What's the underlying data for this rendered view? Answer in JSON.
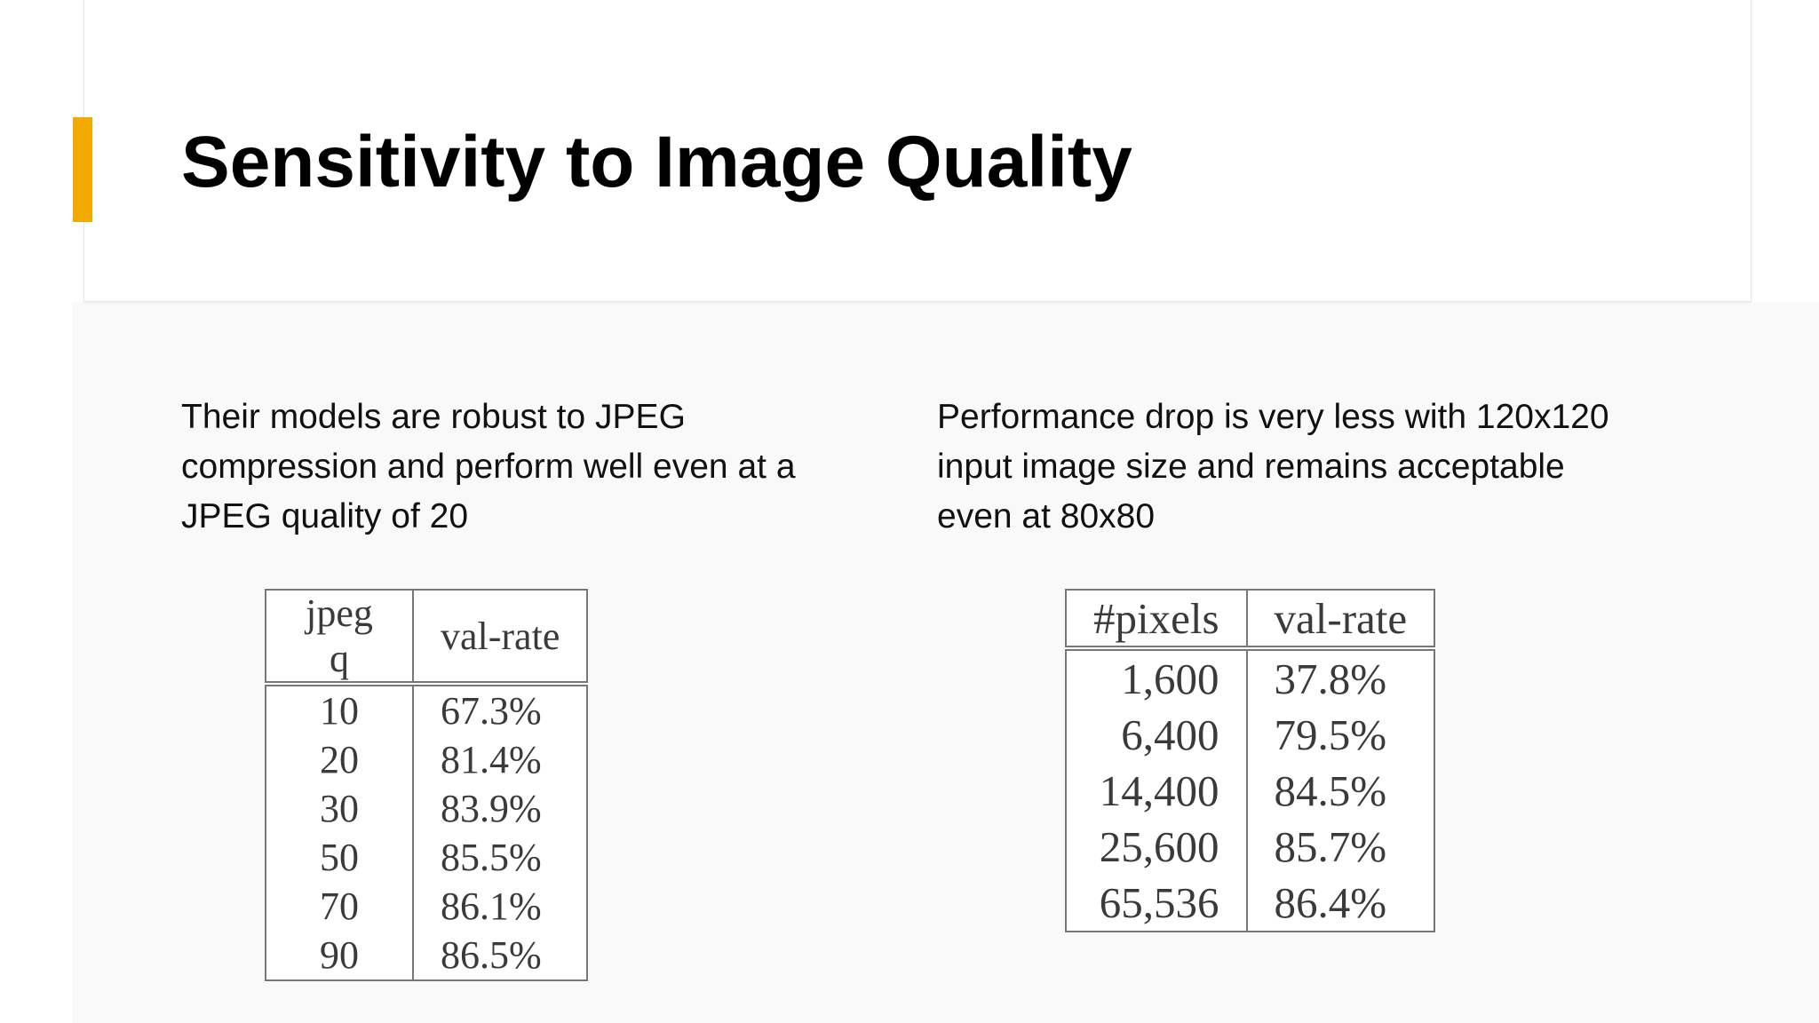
{
  "header": {
    "title": "Sensitivity to Image Quality"
  },
  "columns": [
    {
      "text": "Their models are robust to JPEG compression and perform well even at a JPEG quality of 20",
      "table": {
        "headers": [
          "jpeg q",
          "val-rate"
        ],
        "rows": [
          [
            "10",
            "67.3%"
          ],
          [
            "20",
            "81.4%"
          ],
          [
            "30",
            "83.9%"
          ],
          [
            "50",
            "85.5%"
          ],
          [
            "70",
            "86.1%"
          ],
          [
            "90",
            "86.5%"
          ]
        ]
      }
    },
    {
      "text": "Performance drop is very less with 120x120 input image size and remains acceptable even at 80x80",
      "table": {
        "headers": [
          "#pixels",
          "val-rate"
        ],
        "rows": [
          [
            "1,600",
            "37.8%"
          ],
          [
            "6,400",
            "79.5%"
          ],
          [
            "14,400",
            "84.5%"
          ],
          [
            "25,600",
            "85.7%"
          ],
          [
            "65,536",
            "86.4%"
          ]
        ]
      }
    }
  ]
}
